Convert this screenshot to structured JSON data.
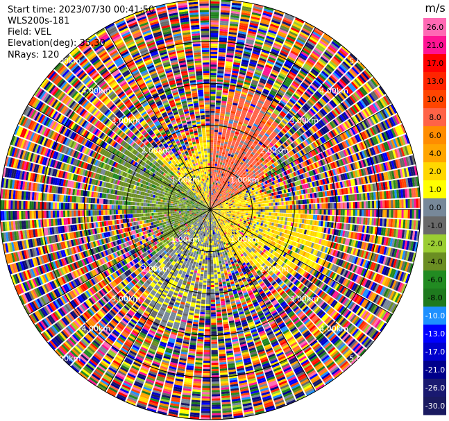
{
  "header": {
    "start_time": "Start time: 2023/07/30 00:41:50",
    "instrument": "WLS200s-181",
    "field": "Field: VEL",
    "elevation": "Elevation(deg): 35.30",
    "nrays": "NRays: 120"
  },
  "range_rings": {
    "labels": [
      "1.00km",
      "2.00km",
      "3.00km",
      "4.00km",
      "5.00km"
    ]
  },
  "colorbar": {
    "unit": "m/s",
    "tick_labels": [
      "26.0",
      "21.0",
      "17.0",
      "13.0",
      "10.0",
      "8.0",
      "6.0",
      "4.0",
      "2.0",
      "1.0",
      "0.0",
      "-1.0",
      "-2.0",
      "-4.0",
      "-6.0",
      "-8.0",
      "-10.0",
      "-13.0",
      "-17.0",
      "-21.0",
      "-26.0",
      "-30.0"
    ],
    "colors": [
      "#ff69b4",
      "#ff1493",
      "#ff0000",
      "#ff2400",
      "#ff4500",
      "#ff6347",
      "#ff8c00",
      "#ffa500",
      "#ffd700",
      "#ffff00",
      "#778899",
      "#696969",
      "#9acd32",
      "#6b8e23",
      "#228b22",
      "#1e7a1e",
      "#1e90ff",
      "#0000ff",
      "#0000cd",
      "#00008b",
      "#191970",
      "#1a1a60"
    ]
  },
  "chart_data": {
    "type": "heatmap",
    "title": "",
    "field": "VEL",
    "units": "m/s",
    "range_max_km": 5.0,
    "nrays": 120,
    "elevation_deg": 35.3,
    "value_range": [
      -30.0,
      26.0
    ],
    "sectors": [
      {
        "azimuth_from_deg": 315,
        "azimuth_to_deg": 360,
        "dominant_velocity": 2.0,
        "range_km": [
          0,
          2.5
        ]
      },
      {
        "azimuth_from_deg": 0,
        "azimuth_to_deg": 60,
        "dominant_velocity": 8.0,
        "range_km": [
          0,
          2.5
        ]
      },
      {
        "azimuth_from_deg": 60,
        "azimuth_to_deg": 160,
        "dominant_velocity": 2.0,
        "range_km": [
          0,
          2.5
        ]
      },
      {
        "azimuth_from_deg": 160,
        "azimuth_to_deg": 230,
        "dominant_velocity": 0.0,
        "range_km": [
          0,
          2.5
        ]
      },
      {
        "azimuth_from_deg": 230,
        "azimuth_to_deg": 315,
        "dominant_velocity": -4.0,
        "range_km": [
          0,
          2.5
        ]
      }
    ],
    "outer_region": "noise"
  }
}
